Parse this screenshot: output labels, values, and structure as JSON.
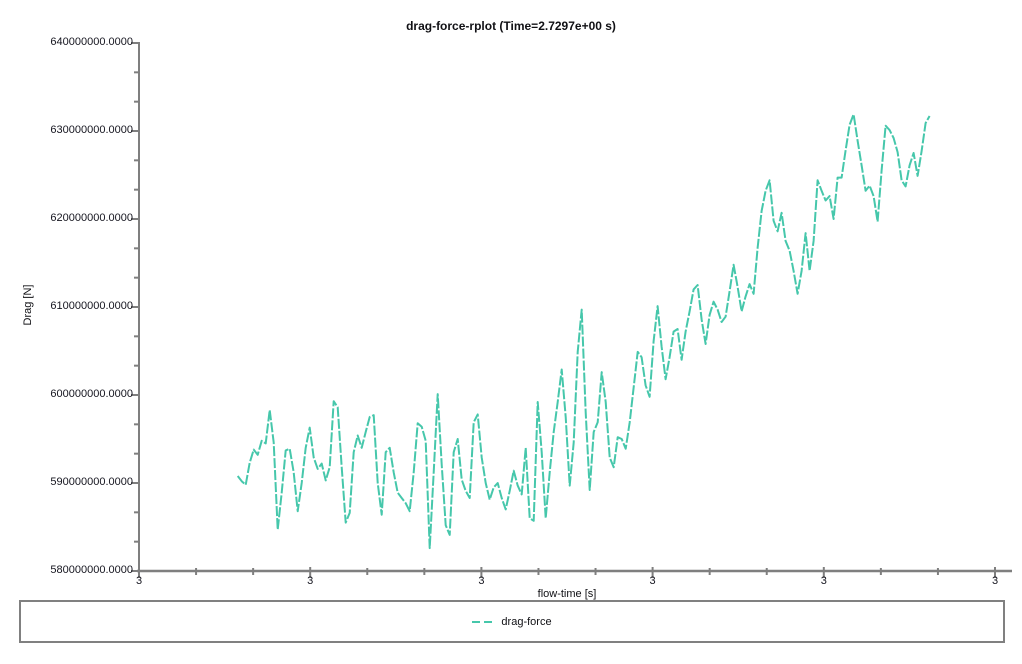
{
  "title": "drag-force-rplot (Time=2.7297e+00 s)",
  "time_readout": "2.7297e+00 s",
  "axes": {
    "x_label": "flow-time [s]",
    "y_label": "Drag [N]",
    "x_tick_labels": [
      "3",
      "3",
      "3",
      "3",
      "3",
      "3"
    ],
    "y_tick_labels": [
      "640000000.0000",
      "630000000.0000",
      "620000000.0000",
      "610000000.0000",
      "600000000.0000",
      "590000000.0000",
      "580000000.0000"
    ],
    "x_minor_ticks_per_interval": 2,
    "y_minor_ticks_per_interval": 2
  },
  "legend": {
    "items": [
      {
        "label": "drag-force",
        "color": "#46c7ab",
        "line_style": "dashed"
      }
    ]
  },
  "colors": {
    "series": "#46c7ab",
    "axis": "#7f7f7f",
    "text": "#101014",
    "background": "#ffffff"
  },
  "chart_data": {
    "type": "line",
    "title": "drag-force-rplot (Time=2.7297e+00 s)",
    "xlabel": "flow-time [s]",
    "ylabel": "Drag [N]",
    "xlim": [
      2.6016,
      2.7403
    ],
    "ylim": [
      580000000,
      640000000
    ],
    "grid": false,
    "legend_position": "bottom-box",
    "x_ticks_note": "6 evenly spaced major ticks, all displayed as '3' (rounded flow-time), 2 minor ticks between majors",
    "y_ticks_note": "majors every 10000000 N from 580000000 to 640000000, 2 minor ticks between majors",
    "series": [
      {
        "name": "drag-force",
        "color": "#46c7ab",
        "sampling": "uniform",
        "x_start": 2.6176,
        "x_end": 2.7297,
        "units": "values are Drag in units of 1e6 N",
        "values_millions_N": [
          590.8,
          590.2,
          589.8,
          592.3,
          593.8,
          593.2,
          594.8,
          594.5,
          598.3,
          594.6,
          584.7,
          588.9,
          593.7,
          593.9,
          591.2,
          586.8,
          590.0,
          594.0,
          596.3,
          592.9,
          591.6,
          592.2,
          590.3,
          591.8,
          599.3,
          598.6,
          591.8,
          585.5,
          586.6,
          593.5,
          595.4,
          594.0,
          595.8,
          597.5,
          597.7,
          590.0,
          586.4,
          593.5,
          594.0,
          591.2,
          588.9,
          588.3,
          587.7,
          586.8,
          591.2,
          596.8,
          596.4,
          594.8,
          582.6,
          591.2,
          600.1,
          592.1,
          585.2,
          584.1,
          593.5,
          595.0,
          590.4,
          589.1,
          588.3,
          596.9,
          597.8,
          592.9,
          590.0,
          588.1,
          589.5,
          590.0,
          588.3,
          587.0,
          589.1,
          591.4,
          589.7,
          588.7,
          594.0,
          586.0,
          585.7,
          599.2,
          593.5,
          586.0,
          591.2,
          595.8,
          599.2,
          602.9,
          597.5,
          589.7,
          594.6,
          604.9,
          609.7,
          598.0,
          589.2,
          595.8,
          596.9,
          602.6,
          599.2,
          592.9,
          591.8,
          595.2,
          595.0,
          593.9,
          596.9,
          600.9,
          604.9,
          604.3,
          601.1,
          599.8,
          606.1,
          610.1,
          605.5,
          601.8,
          604.3,
          607.2,
          607.5,
          604.0,
          607.2,
          609.5,
          612.0,
          612.5,
          608.6,
          605.8,
          609.1,
          610.6,
          609.7,
          608.3,
          608.9,
          611.8,
          614.8,
          612.3,
          609.5,
          611.2,
          612.6,
          611.5,
          616.7,
          620.9,
          623.2,
          624.4,
          619.8,
          618.6,
          620.7,
          617.5,
          616.4,
          614.1,
          611.5,
          614.1,
          618.4,
          614.1,
          617.5,
          624.4,
          623.2,
          622.1,
          622.6,
          620.0,
          624.7,
          624.7,
          627.8,
          630.7,
          631.9,
          628.9,
          626.1,
          623.2,
          623.8,
          622.6,
          619.7,
          625.5,
          630.6,
          630.1,
          629.2,
          627.6,
          624.4,
          623.7,
          626.1,
          627.5,
          624.9,
          627.7,
          630.9,
          631.7
        ]
      }
    ]
  }
}
